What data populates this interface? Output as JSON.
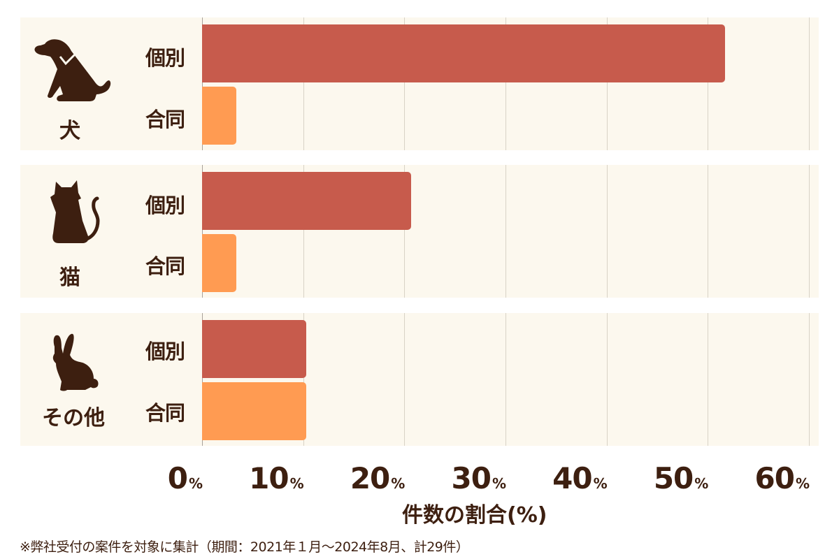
{
  "chart_data": {
    "type": "bar",
    "orientation": "horizontal",
    "title": "",
    "xlabel": "件数の割合(%)",
    "ylabel": "",
    "xlim": [
      0,
      60
    ],
    "x_ticks": [
      "0%",
      "10%",
      "20%",
      "30%",
      "40%",
      "50%",
      "60%"
    ],
    "grid": true,
    "categories": [
      "犬",
      "猫",
      "その他"
    ],
    "series": [
      {
        "name": "個別",
        "color": "#c75b4c",
        "values": [
          51.7,
          20.7,
          10.3
        ]
      },
      {
        "name": "合同",
        "color": "#ff9b52",
        "values": [
          3.4,
          3.4,
          10.3
        ]
      }
    ],
    "note": "※弊社受付の案件を対象に集計（期間：2021年１月〜2024年8月、計29件）"
  },
  "groups": [
    {
      "label": "犬",
      "icon": "dog-icon",
      "individual_label": "個別",
      "joint_label": "合同"
    },
    {
      "label": "猫",
      "icon": "cat-icon",
      "individual_label": "個別",
      "joint_label": "合同"
    },
    {
      "label": "その他",
      "icon": "rabbit-icon",
      "individual_label": "個別",
      "joint_label": "合同"
    }
  ],
  "ticks": [
    {
      "num": "0",
      "unit": "%"
    },
    {
      "num": "10",
      "unit": "%"
    },
    {
      "num": "20",
      "unit": "%"
    },
    {
      "num": "30",
      "unit": "%"
    },
    {
      "num": "40",
      "unit": "%"
    },
    {
      "num": "50",
      "unit": "%"
    },
    {
      "num": "60",
      "unit": "%"
    }
  ],
  "xlabel": "件数の割合(%)",
  "note": "※弊社受付の案件を対象に集計（期間：2021年１月〜2024年8月、計29件）"
}
